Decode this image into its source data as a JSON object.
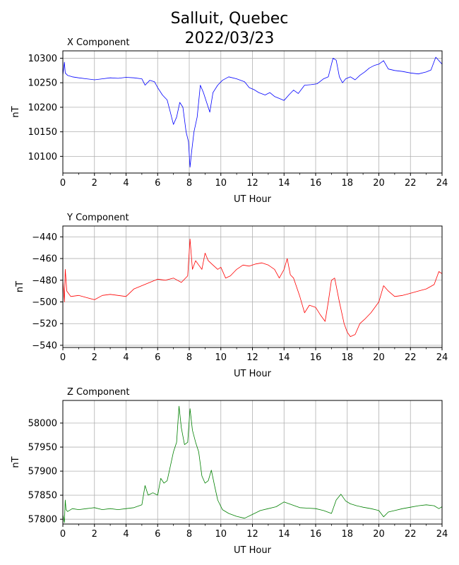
{
  "figure": {
    "title_line1": "Salluit, Quebec",
    "title_line2": "2022/03/23"
  },
  "chart_data": [
    {
      "type": "line",
      "title": "X Component",
      "xlabel": "UT Hour",
      "ylabel": "nT",
      "color": "#0000ff",
      "xlim": [
        0,
        24
      ],
      "ylim": [
        10066,
        10315
      ],
      "xticks": [
        0,
        2,
        4,
        6,
        8,
        10,
        12,
        14,
        16,
        18,
        20,
        22,
        24
      ],
      "yticks": [
        10100,
        10150,
        10200,
        10250,
        10300
      ],
      "grid": true,
      "series": [
        {
          "x": [
            0,
            0.1,
            0.15,
            0.3,
            0.6,
            1.0,
            1.5,
            2.0,
            2.5,
            3.0,
            3.5,
            4.0,
            4.5,
            5.0,
            5.2,
            5.5,
            5.8,
            6.0,
            6.3,
            6.6,
            6.8,
            7.0,
            7.2,
            7.4,
            7.6,
            7.7,
            7.8,
            7.95,
            8.05,
            8.15,
            8.3,
            8.5,
            8.7,
            8.9,
            9.1,
            9.3,
            9.5,
            9.8,
            10.1,
            10.5,
            11.0,
            11.5,
            11.8,
            12.1,
            12.4,
            12.8,
            13.1,
            13.4,
            13.7,
            14.0,
            14.3,
            14.6,
            14.9,
            15.3,
            15.7,
            16.1,
            16.5,
            16.8,
            17.1,
            17.3,
            17.5,
            17.7,
            17.9,
            18.2,
            18.5,
            18.8,
            19.1,
            19.4,
            19.7,
            20.0,
            20.3,
            20.6,
            21.0,
            21.5,
            22.0,
            22.5,
            23.0,
            23.3,
            23.6,
            23.8,
            24.0
          ],
          "y": [
            10265,
            10292,
            10270,
            10265,
            10262,
            10260,
            10258,
            10256,
            10258,
            10260,
            10259,
            10261,
            10260,
            10258,
            10245,
            10255,
            10252,
            10240,
            10225,
            10215,
            10190,
            10165,
            10180,
            10210,
            10200,
            10175,
            10150,
            10130,
            10078,
            10110,
            10150,
            10180,
            10245,
            10230,
            10210,
            10190,
            10230,
            10245,
            10255,
            10262,
            10258,
            10252,
            10240,
            10236,
            10230,
            10225,
            10230,
            10222,
            10218,
            10214,
            10225,
            10235,
            10228,
            10245,
            10246,
            10248,
            10258,
            10262,
            10300,
            10296,
            10262,
            10250,
            10258,
            10262,
            10256,
            10265,
            10272,
            10280,
            10285,
            10288,
            10295,
            10278,
            10275,
            10273,
            10270,
            10268,
            10272,
            10276,
            10302,
            10295,
            10288
          ]
        }
      ]
    },
    {
      "type": "line",
      "title": "Y Component",
      "xlabel": "UT Hour",
      "ylabel": "nT",
      "color": "#ff0000",
      "xlim": [
        0,
        24
      ],
      "ylim": [
        -542,
        -430
      ],
      "xticks": [
        0,
        2,
        4,
        6,
        8,
        10,
        12,
        14,
        16,
        18,
        20,
        22,
        24
      ],
      "yticks": [
        -440,
        -460,
        -480,
        -500,
        -520,
        -540
      ],
      "grid": true,
      "series": [
        {
          "x": [
            0,
            0.1,
            0.15,
            0.25,
            0.5,
            1.0,
            1.5,
            2.0,
            2.5,
            3.0,
            3.5,
            4.0,
            4.5,
            5.0,
            5.5,
            6.0,
            6.5,
            7.0,
            7.5,
            7.9,
            8.05,
            8.2,
            8.4,
            8.6,
            8.8,
            9.0,
            9.2,
            9.5,
            9.8,
            10.0,
            10.3,
            10.6,
            11.0,
            11.4,
            11.8,
            12.2,
            12.6,
            13.0,
            13.4,
            13.7,
            14.0,
            14.2,
            14.4,
            14.6,
            15.0,
            15.3,
            15.6,
            16.0,
            16.3,
            16.6,
            16.8,
            17.0,
            17.2,
            17.5,
            17.8,
            18.0,
            18.2,
            18.5,
            18.8,
            19.1,
            19.5,
            20.0,
            20.3,
            20.6,
            21.0,
            21.5,
            22.0,
            22.5,
            23.0,
            23.5,
            23.8,
            24.0
          ],
          "y": [
            -480,
            -500,
            -470,
            -490,
            -495,
            -494,
            -496,
            -498,
            -494,
            -493,
            -494,
            -495,
            -488,
            -485,
            -482,
            -479,
            -480,
            -478,
            -482,
            -476,
            -442,
            -470,
            -462,
            -466,
            -470,
            -455,
            -462,
            -466,
            -470,
            -468,
            -478,
            -476,
            -470,
            -466,
            -467,
            -465,
            -464,
            -466,
            -470,
            -478,
            -470,
            -460,
            -475,
            -478,
            -495,
            -510,
            -503,
            -505,
            -512,
            -518,
            -500,
            -480,
            -478,
            -500,
            -520,
            -528,
            -532,
            -530,
            -520,
            -516,
            -510,
            -500,
            -485,
            -490,
            -495,
            -494,
            -492,
            -490,
            -488,
            -484,
            -472,
            -474
          ]
        }
      ]
    },
    {
      "type": "line",
      "title": "Z Component",
      "xlabel": "UT Hour",
      "ylabel": "nT",
      "color": "#008000",
      "xlim": [
        0,
        24
      ],
      "ylim": [
        57790,
        58047
      ],
      "xticks": [
        0,
        2,
        4,
        6,
        8,
        10,
        12,
        14,
        16,
        18,
        20,
        22,
        24
      ],
      "yticks": [
        58000,
        57950,
        57900,
        57850,
        57800
      ],
      "grid": true,
      "series": [
        {
          "x": [
            0,
            0.1,
            0.15,
            0.2,
            0.3,
            0.6,
            1.0,
            1.5,
            2.0,
            2.5,
            3.0,
            3.5,
            4.0,
            4.5,
            5.0,
            5.2,
            5.4,
            5.7,
            6.0,
            6.2,
            6.4,
            6.6,
            6.8,
            7.0,
            7.2,
            7.35,
            7.5,
            7.7,
            7.9,
            8.05,
            8.2,
            8.4,
            8.6,
            8.8,
            9.0,
            9.2,
            9.4,
            9.6,
            9.8,
            10.1,
            10.5,
            11.0,
            11.5,
            12.0,
            12.5,
            13.0,
            13.5,
            14.0,
            14.5,
            15.0,
            15.5,
            16.0,
            16.5,
            17.0,
            17.3,
            17.6,
            17.9,
            18.2,
            18.6,
            19.0,
            19.5,
            20.0,
            20.3,
            20.6,
            21.0,
            21.5,
            22.0,
            22.5,
            23.0,
            23.5,
            23.8,
            24.0
          ],
          "y": [
            57810,
            57793,
            57840,
            57820,
            57816,
            57822,
            57820,
            57822,
            57824,
            57820,
            57822,
            57820,
            57822,
            57824,
            57830,
            57870,
            57850,
            57855,
            57850,
            57885,
            57875,
            57880,
            57910,
            57940,
            57960,
            58035,
            57990,
            57955,
            57960,
            58030,
            57985,
            57960,
            57940,
            57890,
            57875,
            57880,
            57902,
            57870,
            57840,
            57820,
            57812,
            57806,
            57802,
            57810,
            57818,
            57822,
            57826,
            57836,
            57830,
            57824,
            57823,
            57822,
            57818,
            57812,
            57840,
            57852,
            57838,
            57832,
            57828,
            57825,
            57822,
            57818,
            57805,
            57815,
            57818,
            57822,
            57825,
            57828,
            57830,
            57828,
            57822,
            57826
          ]
        }
      ]
    }
  ]
}
